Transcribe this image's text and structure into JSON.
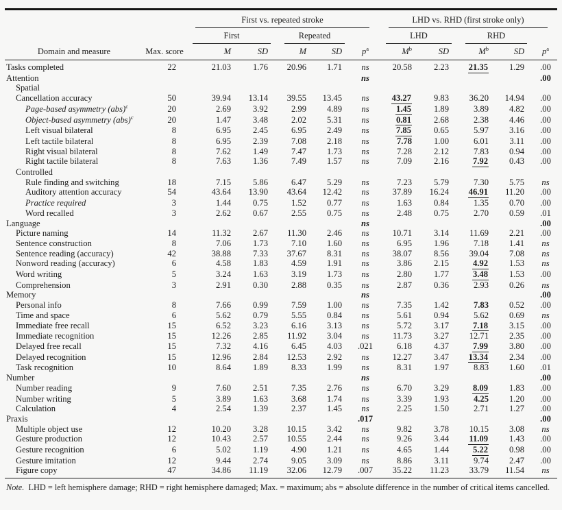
{
  "table": {
    "spanners": {
      "first_vs_repeated": "First vs. repeated stroke",
      "lhd_vs_rhd": "LHD vs. RHD (first stroke only)",
      "first": "First",
      "repeated": "Repeated",
      "lhd": "LHD",
      "rhd": "RHD"
    },
    "col_headers": {
      "domain": "Domain and measure",
      "max_score": "Max. score",
      "m": "M",
      "sd": "SD",
      "p": "p",
      "sup_a": "a",
      "sup_b": "b"
    },
    "rows": [
      {
        "label": "Tasks completed",
        "indent": 0,
        "max": "22",
        "fm": "21.03",
        "fsd": "1.76",
        "rm": "20.96",
        "rsd": "1.71",
        "p1": "ns",
        "lm": "20.58",
        "lsd": "2.23",
        "rhm": "21.35",
        "rhm_e": "bu",
        "rhsd": "1.29",
        "p2": ".00"
      },
      {
        "label": "Attention",
        "indent": 0,
        "section": true,
        "p1": "ns",
        "p2": ".00"
      },
      {
        "label": "Spatial",
        "indent": 1
      },
      {
        "label": "Cancellation accuracy",
        "indent": 1,
        "max": "50",
        "fm": "39.94",
        "fsd": "13.14",
        "rm": "39.55",
        "rsd": "13.45",
        "p1": "ns",
        "lm": "43.27",
        "lm_e": "bu",
        "lsd": "9.83",
        "rhm": "36.20",
        "rhsd": "14.94",
        "p2": ".00"
      },
      {
        "label": "Page-based asymmetry (abs)",
        "sup": "c",
        "italic": true,
        "indent": 2,
        "max": "20",
        "fm": "2.69",
        "fsd": "3.92",
        "rm": "2.99",
        "rsd": "4.89",
        "p1": "ns",
        "lm": "1.45",
        "lm_e": "bu",
        "lsd": "1.89",
        "rhm": "3.89",
        "rhsd": "4.82",
        "p2": ".00"
      },
      {
        "label": "Object-based asymmetry (abs)",
        "sup": "c",
        "italic": true,
        "indent": 2,
        "max": "20",
        "fm": "1.47",
        "fsd": "3.48",
        "rm": "2.02",
        "rsd": "5.31",
        "p1": "ns",
        "lm": "0.81",
        "lm_e": "bu",
        "lsd": "2.68",
        "rhm": "2.38",
        "rhsd": "4.46",
        "p2": ".00"
      },
      {
        "label": "Left visual bilateral",
        "indent": 2,
        "max": "8",
        "fm": "6.95",
        "fsd": "2.45",
        "rm": "6.95",
        "rsd": "2.49",
        "p1": "ns",
        "lm": "7.85",
        "lm_e": "bu",
        "lsd": "0.65",
        "rhm": "5.97",
        "rhsd": "3.16",
        "p2": ".00"
      },
      {
        "label": "Left tactile bilateral",
        "indent": 2,
        "max": "8",
        "fm": "6.95",
        "fsd": "2.39",
        "rm": "7.08",
        "rsd": "2.18",
        "p1": "ns",
        "lm": "7.78",
        "lm_e": "b",
        "lsd": "1.00",
        "rhm": "6.01",
        "rhsd": "3.11",
        "p2": ".00"
      },
      {
        "label": "Right visual bilateral",
        "indent": 2,
        "max": "8",
        "fm": "7.62",
        "fsd": "1.49",
        "rm": "7.47",
        "rsd": "1.73",
        "p1": "ns",
        "lm": "7.28",
        "lsd": "2.12",
        "rhm": "7.83",
        "rhsd": "0.94",
        "p2": ".00"
      },
      {
        "label": "Right tactile bilateral",
        "indent": 2,
        "max": "8",
        "fm": "7.63",
        "fsd": "1.36",
        "rm": "7.49",
        "rsd": "1.57",
        "p1": "ns",
        "lm": "7.09",
        "lsd": "2.16",
        "rhm": "7.92",
        "rhm_e": "bu",
        "rhsd": "0.43",
        "p2": ".00"
      },
      {
        "label": "Controlled",
        "indent": 1
      },
      {
        "label": "Rule finding and switching",
        "indent": 2,
        "max": "18",
        "fm": "7.15",
        "fsd": "5.86",
        "rm": "6.47",
        "rsd": "5.29",
        "p1": "ns",
        "lm": "7.23",
        "lsd": "5.79",
        "rhm": "7.30",
        "rhsd": "5.75",
        "p2": "ns"
      },
      {
        "label": "Auditory attention accuracy",
        "indent": 2,
        "max": "54",
        "fm": "43.64",
        "fsd": "13.90",
        "rm": "43.64",
        "rsd": "12.42",
        "p1": "ns",
        "lm": "37.89",
        "lsd": "16.24",
        "rhm": "46.91",
        "rhm_e": "bu",
        "rhsd": "11.20",
        "p2": ".00"
      },
      {
        "label": "Practice required",
        "italic": true,
        "indent": 2,
        "max": "3",
        "fm": "1.44",
        "fsd": "0.75",
        "rm": "1.52",
        "rsd": "0.77",
        "p1": "ns",
        "lm": "1.63",
        "lsd": "0.84",
        "rhm": "1.35",
        "rhsd": "0.70",
        "p2": ".00"
      },
      {
        "label": "Word recalled",
        "indent": 2,
        "max": "3",
        "fm": "2.62",
        "fsd": "0.67",
        "rm": "2.55",
        "rsd": "0.75",
        "p1": "ns",
        "lm": "2.48",
        "lsd": "0.75",
        "rhm": "2.70",
        "rhsd": "0.59",
        "p2": ".01"
      },
      {
        "label": "Language",
        "indent": 0,
        "section": true,
        "p1": "ns",
        "p2": ".00"
      },
      {
        "label": "Picture naming",
        "indent": 1,
        "max": "14",
        "fm": "11.32",
        "fsd": "2.67",
        "rm": "11.30",
        "rsd": "2.46",
        "p1": "ns",
        "lm": "10.71",
        "lsd": "3.14",
        "rhm": "11.69",
        "rhsd": "2.21",
        "p2": ".00"
      },
      {
        "label": "Sentence construction",
        "indent": 1,
        "max": "8",
        "fm": "7.06",
        "fsd": "1.73",
        "rm": "7.10",
        "rsd": "1.60",
        "p1": "ns",
        "lm": "6.95",
        "lsd": "1.96",
        "rhm": "7.18",
        "rhsd": "1.41",
        "p2": "ns"
      },
      {
        "label": "Sentence reading (accuracy)",
        "indent": 1,
        "max": "42",
        "fm": "38.88",
        "fsd": "7.33",
        "rm": "37.67",
        "rsd": "8.31",
        "p1": "ns",
        "lm": "38.07",
        "lsd": "8.56",
        "rhm": "39.04",
        "rhsd": "7.08",
        "p2": "ns"
      },
      {
        "label": "Nonword reading (accuracy)",
        "indent": 1,
        "max": "6",
        "fm": "4.58",
        "fsd": "1.83",
        "rm": "4.59",
        "rsd": "1.91",
        "p1": "ns",
        "lm": "3.86",
        "lsd": "2.15",
        "rhm": "4.92",
        "rhm_e": "bu",
        "rhsd": "1.53",
        "p2": "ns"
      },
      {
        "label": "Word writing",
        "indent": 1,
        "max": "5",
        "fm": "3.24",
        "fsd": "1.63",
        "rm": "3.19",
        "rsd": "1.73",
        "p1": "ns",
        "lm": "2.80",
        "lsd": "1.77",
        "rhm": "3.48",
        "rhm_e": "bu",
        "rhsd": "1.53",
        "p2": ".00"
      },
      {
        "label": "Comprehension",
        "indent": 1,
        "max": "3",
        "fm": "2.91",
        "fsd": "0.30",
        "rm": "2.88",
        "rsd": "0.35",
        "p1": "ns",
        "lm": "2.87",
        "lsd": "0.36",
        "rhm": "2.93",
        "rhsd": "0.26",
        "p2": "ns"
      },
      {
        "label": "Memory",
        "indent": 0,
        "section": true,
        "p1": "ns",
        "p2": ".00"
      },
      {
        "label": "Personal info",
        "indent": 1,
        "max": "8",
        "fm": "7.66",
        "fsd": "0.99",
        "rm": "7.59",
        "rsd": "1.00",
        "p1": "ns",
        "lm": "7.35",
        "lsd": "1.42",
        "rhm": "7.83",
        "rhm_e": "b",
        "rhsd": "0.52",
        "p2": ".00"
      },
      {
        "label": "Time and space",
        "indent": 1,
        "max": "6",
        "fm": "5.62",
        "fsd": "0.79",
        "rm": "5.55",
        "rsd": "0.84",
        "p1": "ns",
        "lm": "5.61",
        "lsd": "0.94",
        "rhm": "5.62",
        "rhsd": "0.69",
        "p2": "ns"
      },
      {
        "label": "Immediate free recall",
        "indent": 1,
        "max": "15",
        "fm": "6.52",
        "fsd": "3.23",
        "rm": "6.16",
        "rsd": "3.13",
        "p1": "ns",
        "lm": "5.72",
        "lsd": "3.17",
        "rhm": "7.18",
        "rhm_e": "bu",
        "rhsd": "3.15",
        "p2": ".00"
      },
      {
        "label": "Immediate recognition",
        "indent": 1,
        "max": "15",
        "fm": "12.26",
        "fsd": "2.85",
        "rm": "11.92",
        "rsd": "3.04",
        "p1": "ns",
        "lm": "11.73",
        "lsd": "3.27",
        "rhm": "12.71",
        "rhsd": "2.35",
        "p2": ".00"
      },
      {
        "label": "Delayed free recall",
        "indent": 1,
        "max": "15",
        "fm": "7.32",
        "fsd": "4.16",
        "rm": "6.45",
        "rsd": "4.03",
        "p1": ".021",
        "lm": "6.18",
        "lsd": "4.37",
        "rhm": "7.99",
        "rhm_e": "bu",
        "rhsd": "3.80",
        "p2": ".00"
      },
      {
        "label": "Delayed recognition",
        "indent": 1,
        "max": "15",
        "fm": "12.96",
        "fsd": "2.84",
        "rm": "12.53",
        "rsd": "2.92",
        "p1": "ns",
        "lm": "12.27",
        "lsd": "3.47",
        "rhm": "13.34",
        "rhm_e": "bu",
        "rhsd": "2.34",
        "p2": ".00"
      },
      {
        "label": "Task recognition",
        "indent": 1,
        "max": "10",
        "fm": "8.64",
        "fsd": "1.89",
        "rm": "8.33",
        "rsd": "1.99",
        "p1": "ns",
        "lm": "8.31",
        "lsd": "1.97",
        "rhm": "8.83",
        "rhsd": "1.60",
        "p2": ".01"
      },
      {
        "label": "Number",
        "indent": 0,
        "section": true,
        "p1": "ns",
        "p2": ".00"
      },
      {
        "label": "Number reading",
        "indent": 1,
        "max": "9",
        "fm": "7.60",
        "fsd": "2.51",
        "rm": "7.35",
        "rsd": "2.76",
        "p1": "ns",
        "lm": "6.70",
        "lsd": "3.29",
        "rhm": "8.09",
        "rhm_e": "bu",
        "rhsd": "1.83",
        "p2": ".00"
      },
      {
        "label": "Number writing",
        "indent": 1,
        "max": "5",
        "fm": "3.89",
        "fsd": "1.63",
        "rm": "3.68",
        "rsd": "1.74",
        "p1": "ns",
        "lm": "3.39",
        "lsd": "1.93",
        "rhm": "4.25",
        "rhm_e": "b",
        "rhsd": "1.20",
        "p2": ".00"
      },
      {
        "label": "Calculation",
        "indent": 1,
        "max": "4",
        "fm": "2.54",
        "fsd": "1.39",
        "rm": "2.37",
        "rsd": "1.45",
        "p1": "ns",
        "lm": "2.25",
        "lsd": "1.50",
        "rhm": "2.71",
        "rhsd": "1.27",
        "p2": ".00"
      },
      {
        "label": "Praxis",
        "indent": 0,
        "section": true,
        "p1": ".017",
        "p2": ".00"
      },
      {
        "label": "Multiple object use",
        "indent": 1,
        "max": "12",
        "fm": "10.20",
        "fsd": "3.28",
        "rm": "10.15",
        "rsd": "3.42",
        "p1": "ns",
        "lm": "9.82",
        "lsd": "3.78",
        "rhm": "10.15",
        "rhsd": "3.08",
        "p2": "ns"
      },
      {
        "label": "Gesture production",
        "indent": 1,
        "max": "12",
        "fm": "10.43",
        "fsd": "2.57",
        "rm": "10.55",
        "rsd": "2.44",
        "p1": "ns",
        "lm": "9.26",
        "lsd": "3.44",
        "rhm": "11.09",
        "rhm_e": "bu",
        "rhsd": "1.43",
        "p2": ".00"
      },
      {
        "label": "Gesture recognition",
        "indent": 1,
        "max": "6",
        "fm": "5.02",
        "fsd": "1.19",
        "rm": "4.90",
        "rsd": "1.21",
        "p1": "ns",
        "lm": "4.65",
        "lsd": "1.44",
        "rhm": "5.22",
        "rhm_e": "bu",
        "rhsd": "0.98",
        "p2": ".00"
      },
      {
        "label": "Gesture imitation",
        "indent": 1,
        "max": "12",
        "fm": "9.44",
        "fsd": "2.74",
        "rm": "9.05",
        "rsd": "3.09",
        "p1": "ns",
        "lm": "8.86",
        "lsd": "3.11",
        "rhm": "9.74",
        "rhsd": "2.47",
        "p2": ".00"
      },
      {
        "label": "Figure copy",
        "indent": 1,
        "max": "47",
        "fm": "34.86",
        "fsd": "11.19",
        "rm": "32.06",
        "rsd": "12.79",
        "p1": ".007",
        "lm": "35.22",
        "lsd": "11.23",
        "rhm": "33.79",
        "rhsd": "11.54",
        "p2": "ns"
      }
    ],
    "note_label": "Note.",
    "note_text": "LHD = left hemisphere damage; RHD = right hemisphere damaged; Max. = maximum; abs = absolute difference in the number of critical items cancelled."
  }
}
